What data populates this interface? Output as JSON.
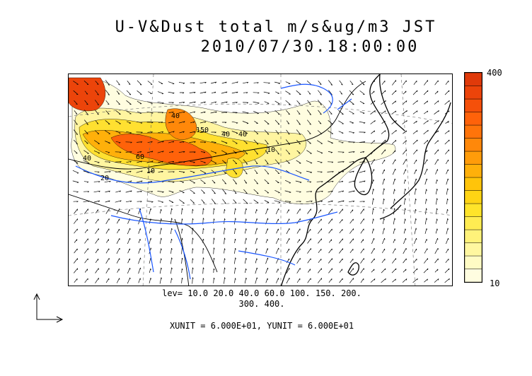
{
  "title": {
    "line1": "U-V&Dust total m/s&ug/m3 JST",
    "line2": "2010/07/30.18:00:00"
  },
  "colorbar": {
    "max_label": "400",
    "min_label": "10",
    "colors": [
      "#fffde0",
      "#fffbc4",
      "#fff7a0",
      "#fff27a",
      "#ffec52",
      "#ffe42a",
      "#ffd414",
      "#ffc40a",
      "#ffb00a",
      "#ff9c0a",
      "#ff880a",
      "#ff740a",
      "#ff620a",
      "#f5500a",
      "#ec440a",
      "#e03a0a"
    ]
  },
  "levels": {
    "line1": "lev= 10.0 20.0 40.0 60.0 100. 150. 200.",
    "line2": "300. 400."
  },
  "units": {
    "text": "XUNIT = 6.000E+01, YUNIT = 6.000E+01"
  },
  "contour_labels": [
    "150",
    "40",
    "40",
    "40",
    "10",
    "60",
    "20",
    "10",
    "40"
  ],
  "colors": {
    "coast": "#000000",
    "rivers": "#1a56ff",
    "vectors": "#000000",
    "gridlines": "#666666"
  }
}
